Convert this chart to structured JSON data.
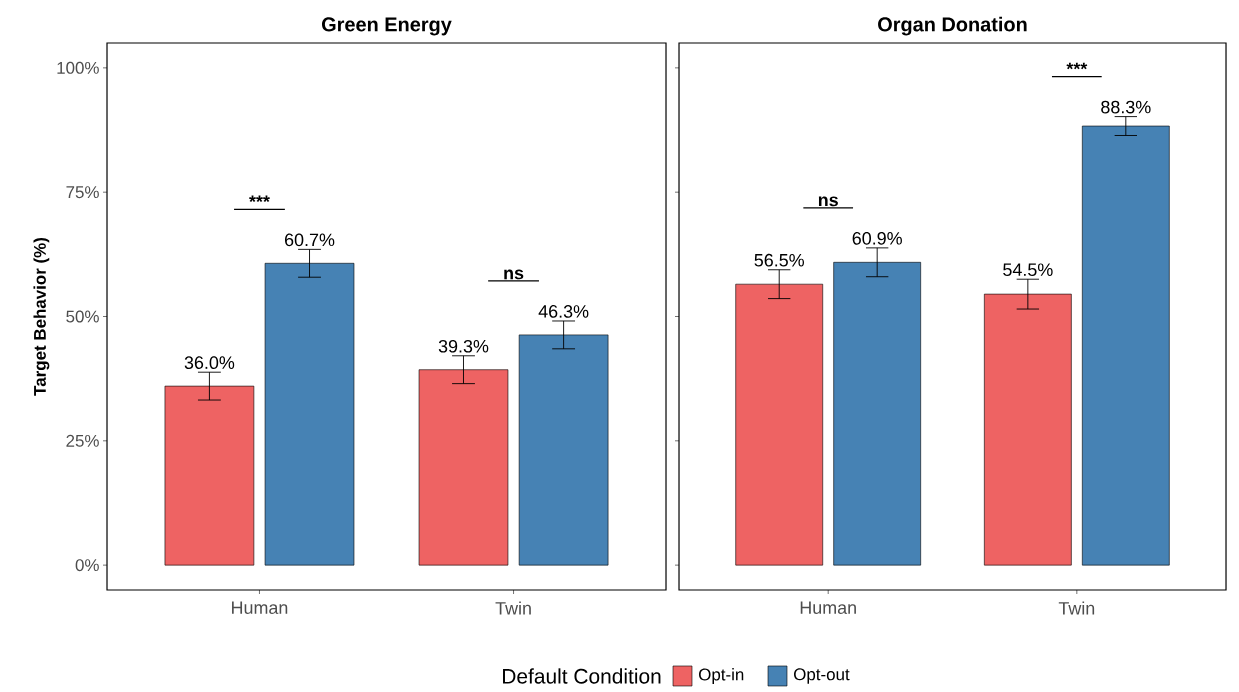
{
  "chart_data": [
    {
      "type": "bar",
      "title": "Green Energy",
      "ylabel": "Target Behavior (%)",
      "categories": [
        "Human",
        "Twin"
      ],
      "series": [
        {
          "name": "Opt-in",
          "color": "#ee6363",
          "values": [
            36.0,
            39.3
          ],
          "errors": [
            2.8,
            2.8
          ],
          "value_labels": [
            "36.0%",
            "39.3%"
          ]
        },
        {
          "name": "Opt-out",
          "color": "#4682b4",
          "values": [
            60.7,
            46.3
          ],
          "errors": [
            2.8,
            2.8
          ],
          "value_labels": [
            "60.7%",
            "46.3%"
          ]
        }
      ],
      "ylim": [
        -5,
        105
      ],
      "yticks": [
        {
          "value": 0,
          "label": "0%"
        },
        {
          "value": 25,
          "label": "25%"
        },
        {
          "value": 50,
          "label": "50%"
        },
        {
          "value": 75,
          "label": "75%"
        },
        {
          "value": 100,
          "label": "100%"
        }
      ],
      "annotations": [
        "***",
        "ns"
      ],
      "legend": "bottom",
      "legend_title": "Default Condition"
    },
    {
      "type": "bar",
      "title": "Organ Donation",
      "categories": [
        "Human",
        "Twin"
      ],
      "series": [
        {
          "color": "#ee6363",
          "values": [
            56.5,
            54.5
          ],
          "errors": [
            2.9,
            3.0
          ],
          "value_labels": [
            "56.5%",
            "54.5%"
          ]
        },
        {
          "color": "#4682b4",
          "values": [
            60.9,
            88.3
          ],
          "errors": [
            2.9,
            1.9
          ],
          "value_labels": [
            "60.9%",
            "88.3%"
          ]
        }
      ],
      "ylim": [
        -5,
        105
      ],
      "yticks": [
        {
          "value": 0,
          "label": null
        },
        {
          "value": 25,
          "label": null
        },
        {
          "value": 50,
          "label": null
        },
        {
          "value": 75,
          "label": null
        },
        {
          "value": 100,
          "label": null
        }
      ],
      "annotations": [
        "ns",
        "***"
      ],
      "tick_labels": "x"
    }
  ]
}
